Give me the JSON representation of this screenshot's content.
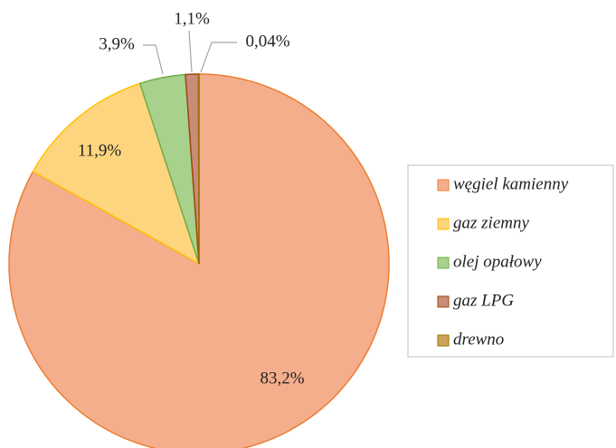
{
  "chart_data": {
    "type": "pie",
    "categories": [
      "węgiel kamienny",
      "gaz ziemny",
      "olej opałowy",
      "gaz LPG",
      "drewno"
    ],
    "values": [
      83.2,
      11.9,
      3.9,
      1.1,
      0.04
    ],
    "value_labels": [
      "83,2%",
      "11,9%",
      "3,9%",
      "1,1%",
      "0,04%"
    ],
    "colors": [
      "#f5ae8c",
      "#fed57f",
      "#a9d18e",
      "#c98b7a",
      "#c9a35a"
    ],
    "edge_colors": [
      "#ed7d31",
      "#ffc000",
      "#70ad47",
      "#9e480e",
      "#997300"
    ],
    "legend": "right"
  }
}
